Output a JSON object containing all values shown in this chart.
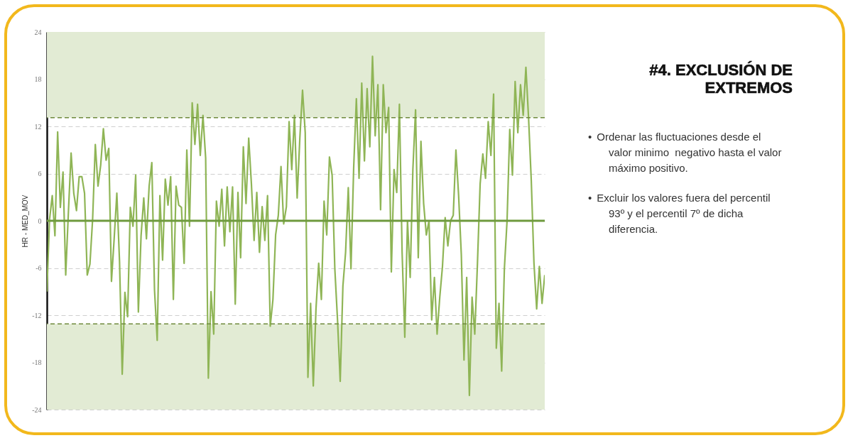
{
  "chart_data": {
    "type": "line",
    "title": "#4. EXCLUSIÓN DE EXTREMOS",
    "ylabel": "HR - MED_MOV",
    "annotations": [
      "•\tOrdenar las fluctuaciones desde el valor minimo  negativo hasta el valor máximo positivo.",
      "•\tExcluir los valores fuera del percentil 93º y el percentil 7º de dicha diferencia."
    ],
    "categories": [
      null,
      null,
      null,
      null,
      null,
      null,
      null,
      null,
      null,
      null,
      null,
      null,
      null,
      null,
      null,
      null,
      null,
      null,
      null,
      null,
      null,
      null,
      null,
      null,
      null,
      null,
      null,
      null,
      null,
      null,
      null,
      null,
      null,
      null,
      null,
      null,
      null,
      null,
      null,
      null,
      null,
      null,
      null,
      null,
      null,
      null,
      null,
      null,
      null,
      null,
      null,
      null,
      null,
      null,
      null,
      null,
      null,
      null,
      null,
      null,
      null,
      null,
      null,
      null,
      null,
      null,
      null,
      null,
      null,
      null,
      null,
      null,
      null,
      null,
      null,
      null,
      null,
      null,
      null,
      null,
      null,
      null,
      null,
      null,
      null,
      null,
      null,
      null,
      null,
      null,
      null,
      null,
      null,
      null,
      null,
      null,
      null,
      null,
      null,
      null,
      null,
      null,
      null,
      null,
      null,
      null,
      null,
      null,
      null,
      null,
      null,
      null,
      null,
      null,
      null,
      null,
      null,
      null,
      null,
      null,
      null,
      null,
      null,
      null,
      null,
      null,
      null,
      null,
      null,
      null,
      null,
      null,
      null,
      null,
      null,
      null,
      null,
      null,
      null,
      null,
      null,
      null,
      null,
      null,
      null,
      null,
      null,
      null,
      null,
      null,
      null,
      null,
      null,
      null,
      null,
      null,
      null,
      null,
      null,
      null,
      null,
      null,
      null,
      null,
      null,
      null,
      null,
      null,
      null,
      null,
      null,
      null,
      null,
      null,
      null,
      null,
      null,
      null,
      null,
      null,
      null,
      null,
      null,
      null,
      null,
      null
    ],
    "values": [
      -9,
      0.2,
      3.2,
      -1.9,
      11.3,
      1.7,
      6.2,
      -6.9,
      1.1,
      8.6,
      3.5,
      1.3,
      5.6,
      5.6,
      3.5,
      -6.9,
      -5.5,
      0.2,
      9.7,
      4.4,
      7.1,
      11.7,
      7.7,
      9.2,
      -7.7,
      -2.3,
      3.5,
      -5.2,
      -19.5,
      -9.1,
      -12.2,
      1.7,
      -0.7,
      5.8,
      -11.6,
      -1.9,
      2.9,
      -2.3,
      4.4,
      7.4,
      -8.8,
      -15.2,
      3.2,
      -5,
      5.3,
      2,
      5.6,
      -10,
      4.4,
      2,
      1.7,
      -5.4,
      9,
      -0.7,
      15,
      9.7,
      14.8,
      8.3,
      13.4,
      8,
      -20,
      -9,
      -14.4,
      2.5,
      -0.7,
      4,
      -3.2,
      4.3,
      -1.4,
      4.3,
      -10.6,
      3.6,
      -4.7,
      9.4,
      2.2,
      10.5,
      4.7,
      -2.5,
      3.6,
      -4,
      1.8,
      -2.5,
      3.2,
      -13.4,
      -10,
      -1.8,
      0.7,
      6.9,
      -0.4,
      1.8,
      12.6,
      6.5,
      13.4,
      2.9,
      10.5,
      16.6,
      11.2,
      -19.9,
      -10.5,
      -21,
      -11.2,
      -5.4,
      -10,
      2.5,
      -1.8,
      8.1,
      5.8,
      -6.1,
      -12.6,
      -20.4,
      -8.3,
      -4,
      4.2,
      -6.1,
      6.7,
      15.5,
      5.4,
      17.5,
      7.6,
      16.8,
      9.4,
      20.9,
      10.8,
      17.3,
      1.4,
      17.3,
      11.2,
      14.4,
      -6.5,
      6.5,
      3.6,
      14.8,
      -4,
      -14.8,
      0,
      -7.2,
      6.5,
      14.1,
      -4.7,
      10.1,
      2.2,
      -1.8,
      0,
      -12.6,
      -7.2,
      -14.4,
      -9.7,
      -5.8,
      0.4,
      -3.2,
      0,
      0.7,
      9,
      3.2,
      -4.3,
      -17.7,
      -7.2,
      -22.2,
      -9.7,
      -14.4,
      -5.4,
      4.7,
      8.5,
      5.4,
      12.6,
      8.3,
      16.1,
      -16.2,
      -10.5,
      -19.1,
      -6.1,
      0,
      11.6,
      5.8,
      17.7,
      11.2,
      17.3,
      13.4,
      19.5,
      13,
      5.1,
      -5.4,
      -11.2,
      -5.8,
      -10.5,
      -6.9
    ],
    "color": "#8fb556",
    "ylim": [
      -24,
      24
    ],
    "yticks": [
      -24,
      -18,
      -12,
      -6,
      0,
      6,
      12,
      18,
      24
    ],
    "grid": "y",
    "bands": [
      {
        "axis": "y",
        "from": 13.1,
        "to": 24,
        "label": null,
        "color": "#e2ebd4"
      },
      {
        "axis": "y",
        "from": -24,
        "to": -13.1,
        "label": null,
        "color": "#e2ebd4"
      }
    ],
    "ref_lines": [
      {
        "axis": "y",
        "value": 0,
        "label": null,
        "color": "#6f9a3e",
        "line_style": "solid"
      },
      {
        "axis": "y",
        "value": 13.1,
        "label": null,
        "color": "#6f8a3c",
        "line_style": "dashed"
      },
      {
        "axis": "y",
        "value": -13.1,
        "label": null,
        "color": "#6f8a3c",
        "line_style": "dashed"
      }
    ]
  }
}
